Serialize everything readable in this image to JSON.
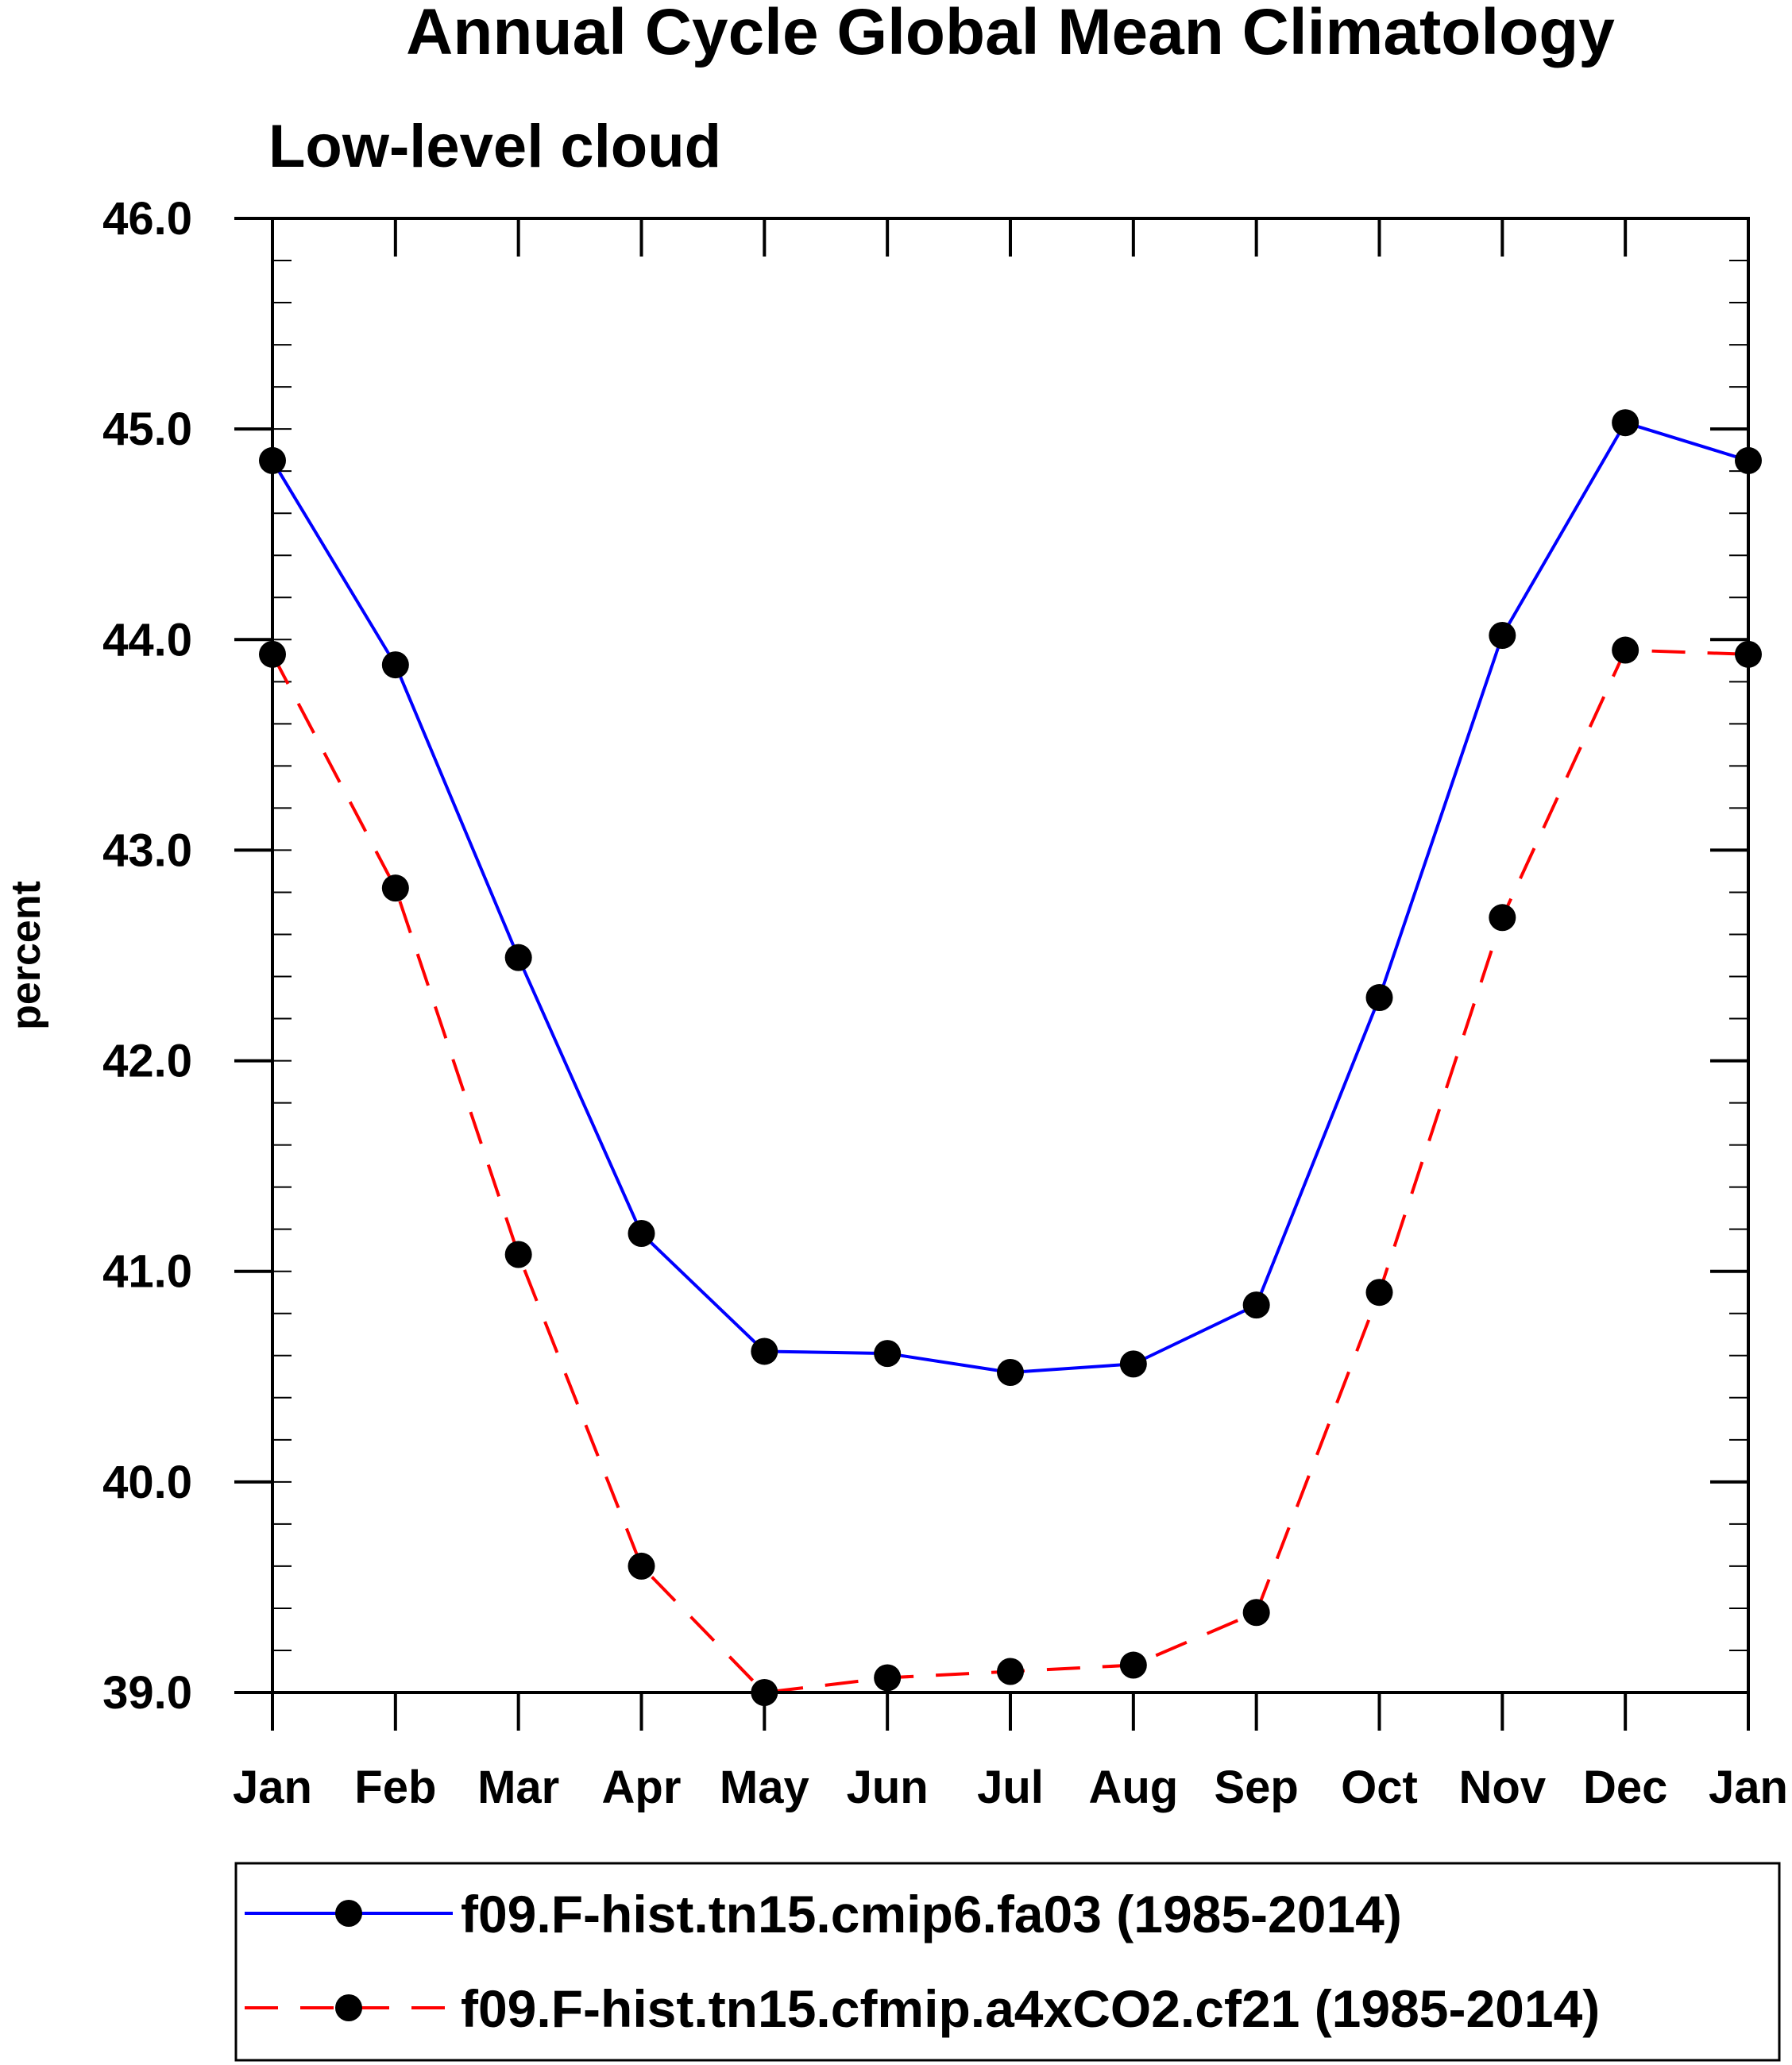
{
  "chart_data": {
    "type": "line",
    "title": "Annual Cycle Global Mean Climatology",
    "subtitle": "Low-level cloud",
    "xlabel": "",
    "ylabel": "percent",
    "ylim": [
      39.0,
      46.0
    ],
    "y_major_ticks": [
      39.0,
      40.0,
      41.0,
      42.0,
      43.0,
      44.0,
      45.0,
      46.0
    ],
    "y_tick_labels": [
      "39.0",
      "40.0",
      "41.0",
      "42.0",
      "43.0",
      "44.0",
      "45.0",
      "46.0"
    ],
    "y_minor_step": 0.2,
    "categories": [
      "Jan",
      "Feb",
      "Mar",
      "Apr",
      "May",
      "Jun",
      "Jul",
      "Aug",
      "Sep",
      "Oct",
      "Nov",
      "Dec",
      "Jan"
    ],
    "grid": false,
    "legend_position": "bottom",
    "series": [
      {
        "name": "f09.F-hist.tn15.cmip6.fa03 (1985-2014)",
        "color": "#0000ff",
        "dash": "solid",
        "marker_color": "#000000",
        "values": [
          44.85,
          43.88,
          42.49,
          41.18,
          40.62,
          40.61,
          40.52,
          40.56,
          40.84,
          42.3,
          44.02,
          45.03,
          44.85
        ]
      },
      {
        "name": "f09.F-hist.tn15.cfmip.a4xCO2.cf21 (1985-2014)",
        "color": "#ff0000",
        "dash": "dashed",
        "marker_color": "#000000",
        "values": [
          43.93,
          42.82,
          41.08,
          39.6,
          39.0,
          39.07,
          39.1,
          39.13,
          39.38,
          40.9,
          42.68,
          43.95,
          43.93
        ]
      }
    ]
  }
}
